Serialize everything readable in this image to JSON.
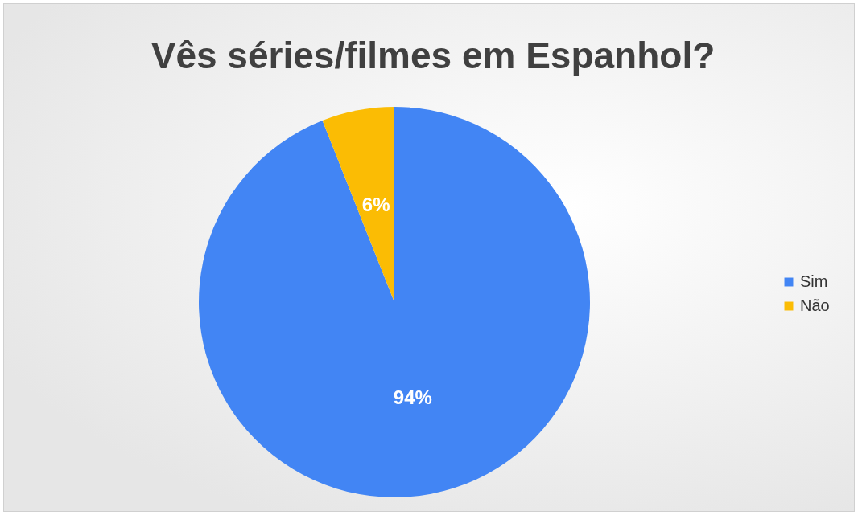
{
  "chart_data": {
    "type": "pie",
    "title": "Vês séries/filmes em Espanhol?",
    "categories": [
      "Sim",
      "Não"
    ],
    "values": [
      94,
      6
    ],
    "colors": [
      "#4285f4",
      "#fbbc04"
    ],
    "value_labels": [
      "94%",
      "6%"
    ],
    "legend": "right"
  }
}
